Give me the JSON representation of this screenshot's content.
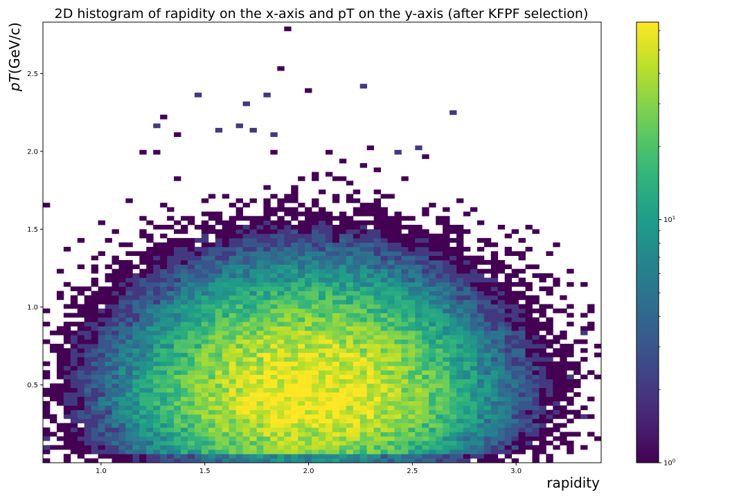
{
  "chart_data": {
    "type": "heatmap",
    "title": "2D histogram of rapidity on the x-axis and pT on the y-axis (after KFPF selection)",
    "xlabel": "rapidity",
    "ylabel_italic": "pT",
    "ylabel_unit": "(GeV/c)",
    "xlim": [
      0.72,
      3.41
    ],
    "ylim": [
      0.0,
      2.83
    ],
    "x_ticks": [
      {
        "value": 1.0,
        "label": "1.0"
      },
      {
        "value": 1.5,
        "label": "1.5"
      },
      {
        "value": 2.0,
        "label": "2.0"
      },
      {
        "value": 2.5,
        "label": "2.5"
      },
      {
        "value": 3.0,
        "label": "3.0"
      }
    ],
    "y_ticks": [
      {
        "value": 0.5,
        "label": "0.5"
      },
      {
        "value": 1.0,
        "label": "1.0"
      },
      {
        "value": 1.5,
        "label": "1.5"
      },
      {
        "value": 2.0,
        "label": "2.0"
      },
      {
        "value": 2.5,
        "label": "2.5"
      }
    ],
    "bins_x": 81,
    "bins_y": 100,
    "colorbar": {
      "scale": "log",
      "colormap": "viridis",
      "range": [
        1,
        65
      ],
      "major_ticks": [
        {
          "value": 1,
          "label": "10",
          "exp": "0"
        },
        {
          "value": 10,
          "label": "10",
          "exp": "1"
        }
      ],
      "minor_ticks": [
        2,
        3,
        4,
        5,
        6,
        7,
        8,
        9,
        20,
        30,
        40,
        50,
        60
      ]
    },
    "distribution": {
      "description_values": "counts per bin, peaked near rapidity 2.0 and pT 0.4",
      "peak_count": 65,
      "peak_x": 2.0,
      "peak_y": 0.42,
      "sigma_x": 0.42,
      "sigma_y_low": 0.28,
      "sigma_y_high": 0.4
    },
    "outliers": [
      {
        "x": 1.91,
        "y": 2.8,
        "count": 1
      },
      {
        "x": 1.88,
        "y": 2.52,
        "count": 1
      },
      {
        "x": 2.01,
        "y": 2.38,
        "count": 1
      },
      {
        "x": 2.28,
        "y": 2.42,
        "count": 2
      },
      {
        "x": 1.47,
        "y": 2.35,
        "count": 2
      },
      {
        "x": 1.81,
        "y": 2.35,
        "count": 2
      },
      {
        "x": 1.71,
        "y": 2.31,
        "count": 2
      },
      {
        "x": 2.68,
        "y": 2.24,
        "count": 2
      },
      {
        "x": 1.3,
        "y": 2.21,
        "count": 1
      },
      {
        "x": 1.27,
        "y": 2.17,
        "count": 2
      },
      {
        "x": 1.67,
        "y": 2.17,
        "count": 2
      },
      {
        "x": 1.57,
        "y": 2.13,
        "count": 2
      },
      {
        "x": 1.74,
        "y": 2.13,
        "count": 2
      },
      {
        "x": 1.84,
        "y": 2.1,
        "count": 2
      },
      {
        "x": 2.54,
        "y": 2.03,
        "count": 2
      },
      {
        "x": 2.44,
        "y": 1.99,
        "count": 2
      },
      {
        "x": 3.41,
        "y": 0.65,
        "count": 1
      },
      {
        "x": 3.32,
        "y": 0.87,
        "count": 1
      },
      {
        "x": 3.25,
        "y": 0.94,
        "count": 1
      },
      {
        "x": 3.32,
        "y": 0.77,
        "count": 1
      },
      {
        "x": 3.32,
        "y": 0.84,
        "count": 2
      },
      {
        "x": 3.32,
        "y": 0.31,
        "count": 2
      },
      {
        "x": 3.25,
        "y": 0.54,
        "count": 2
      },
      {
        "x": 3.25,
        "y": 0.63,
        "count": 1
      },
      {
        "x": 0.75,
        "y": 0.16,
        "count": 2
      },
      {
        "x": 0.75,
        "y": 0.09,
        "count": 2
      },
      {
        "x": 0.82,
        "y": 0.23,
        "count": 1
      },
      {
        "x": 0.85,
        "y": 0.05,
        "count": 1
      },
      {
        "x": 0.88,
        "y": 0.3,
        "count": 2
      },
      {
        "x": 0.92,
        "y": 0.4,
        "count": 2
      }
    ]
  }
}
